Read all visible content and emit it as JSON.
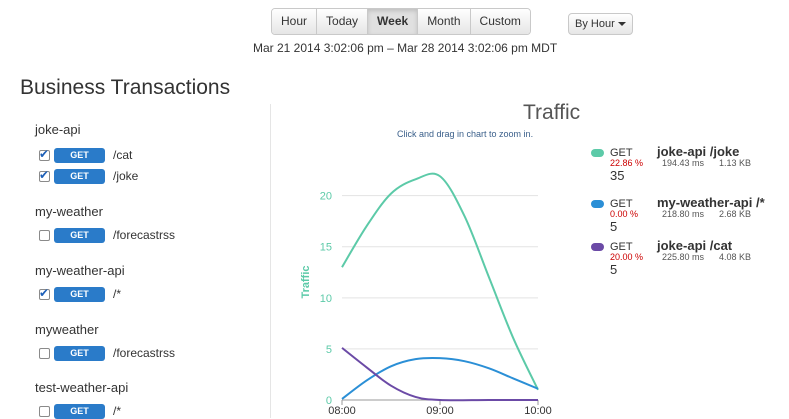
{
  "range_buttons": [
    {
      "label": "Hour",
      "active": false
    },
    {
      "label": "Today",
      "active": false
    },
    {
      "label": "Week",
      "active": true
    },
    {
      "label": "Month",
      "active": false
    },
    {
      "label": "Custom",
      "active": false
    }
  ],
  "granularity": {
    "label": "By Hour"
  },
  "date_range": "Mar 21 2014 3:02:06 pm  –  Mar 28 2014 3:02:06 pm MDT",
  "sidebar": {
    "title": "Business Transactions",
    "groups": [
      {
        "name": "joke-api",
        "items": [
          {
            "method": "GET",
            "path": "/cat",
            "checked": true
          },
          {
            "method": "GET",
            "path": "/joke",
            "checked": true
          }
        ]
      },
      {
        "name": "my-weather",
        "items": [
          {
            "method": "GET",
            "path": "/forecastrss",
            "checked": false
          }
        ]
      },
      {
        "name": "my-weather-api",
        "items": [
          {
            "method": "GET",
            "path": "/*",
            "checked": true
          }
        ]
      },
      {
        "name": "myweather",
        "items": [
          {
            "method": "GET",
            "path": "/forecastrss",
            "checked": false
          }
        ]
      },
      {
        "name": "test-weather-api",
        "items": [
          {
            "method": "GET",
            "path": "/*",
            "checked": false
          }
        ]
      }
    ]
  },
  "chart": {
    "title": "Traffic",
    "subtitle": "Click and drag in chart to zoom in.",
    "ylabel": "Traffic"
  },
  "chart_data": {
    "type": "line",
    "x_ticks": [
      "08:00",
      "09:00",
      "10:00"
    ],
    "y_ticks": [
      0,
      5,
      10,
      15,
      20
    ],
    "ylim": [
      0,
      23
    ],
    "series": [
      {
        "name": "GET joke-api /joke",
        "color": "#5ccaa8",
        "points": [
          [
            8.0,
            13
          ],
          [
            8.25,
            17
          ],
          [
            8.5,
            20.2
          ],
          [
            8.75,
            21.6
          ],
          [
            9.0,
            21.9
          ],
          [
            9.25,
            18.0
          ],
          [
            9.5,
            12.0
          ],
          [
            9.75,
            6.0
          ],
          [
            10.0,
            1.0
          ]
        ]
      },
      {
        "name": "GET my-weather-api /*",
        "color": "#2b8fd6",
        "points": [
          [
            8.0,
            0.1
          ],
          [
            8.25,
            1.9
          ],
          [
            8.5,
            3.3
          ],
          [
            8.75,
            4.0
          ],
          [
            9.0,
            4.1
          ],
          [
            9.25,
            3.8
          ],
          [
            9.5,
            3.1
          ],
          [
            9.75,
            2.1
          ],
          [
            10.0,
            1.1
          ]
        ]
      },
      {
        "name": "GET joke-api /cat",
        "color": "#6b4aa6",
        "points": [
          [
            8.0,
            5.1
          ],
          [
            8.25,
            3.2
          ],
          [
            8.5,
            1.4
          ],
          [
            8.75,
            0.3
          ],
          [
            9.0,
            0
          ],
          [
            9.5,
            0
          ],
          [
            10.0,
            0
          ]
        ]
      }
    ]
  },
  "legend": [
    {
      "method": "GET",
      "name": "joke-api /joke",
      "percent": "22.86 %",
      "latency": "194.43 ms",
      "size": "1.13 KB",
      "count": "35",
      "color": "#5ccaa8"
    },
    {
      "method": "GET",
      "name": "my-weather-api /*",
      "percent": "0.00 %",
      "latency": "218.80 ms",
      "size": "2.68 KB",
      "count": "5",
      "color": "#2b8fd6"
    },
    {
      "method": "GET",
      "name": "joke-api /cat",
      "percent": "20.00 %",
      "latency": "225.80 ms",
      "size": "4.08 KB",
      "count": "5",
      "color": "#6b4aa6"
    }
  ]
}
